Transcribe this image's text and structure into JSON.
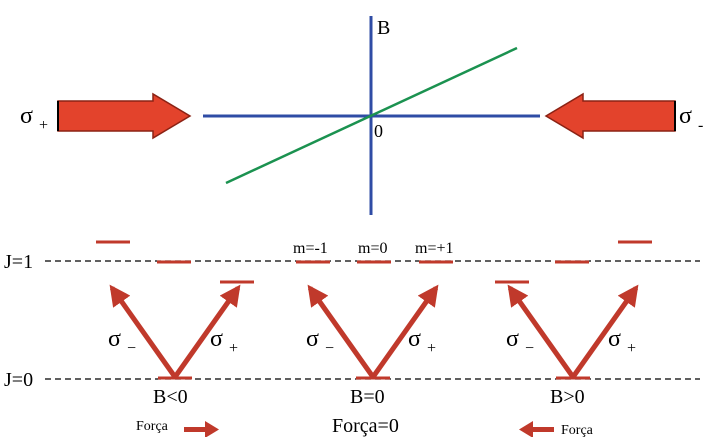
{
  "colors": {
    "axis": "#2F4CA5",
    "field_line": "#1B9250",
    "beam_arrow": "#E3432C",
    "transition_arrow": "#C0392B",
    "level": "#C0392B",
    "dashed": "#000000",
    "background": "#FFFFFF"
  },
  "top": {
    "axis_label_B": "B",
    "origin_label": "0",
    "left_beam": {
      "symbol": "σ",
      "subscript": "+"
    },
    "right_beam": {
      "symbol": "σ",
      "subscript": "-"
    }
  },
  "levels": {
    "upper_label": "J=1",
    "lower_label": "J=0",
    "m_labels": [
      "m=-1",
      "m=0",
      "m=+1"
    ]
  },
  "panels": [
    {
      "id": "b-negative",
      "left_transition": {
        "symbol": "σ",
        "subscript": "−"
      },
      "right_transition": {
        "symbol": "σ",
        "subscript": "+"
      },
      "condition": "B<0"
    },
    {
      "id": "b-zero",
      "left_transition": {
        "symbol": "σ",
        "subscript": "−"
      },
      "right_transition": {
        "symbol": "σ",
        "subscript": "+"
      },
      "condition": "B=0"
    },
    {
      "id": "b-positive",
      "left_transition": {
        "symbol": "σ",
        "subscript": "−"
      },
      "right_transition": {
        "symbol": "σ",
        "subscript": "+"
      },
      "condition": "B>0"
    }
  ],
  "forces": {
    "left": "Força",
    "center": "Força=0",
    "right": "Força"
  }
}
